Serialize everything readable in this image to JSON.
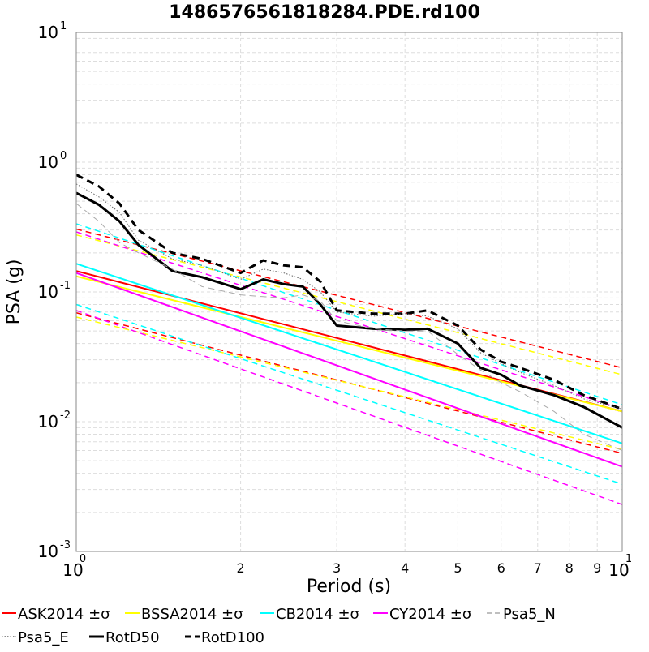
{
  "chart_data": {
    "type": "line",
    "title": "1486576561818284.PDE.rd100",
    "xlabel": "Period (s)",
    "ylabel": "PSA (g)",
    "xscale": "log",
    "yscale": "log",
    "xlim": [
      1,
      10
    ],
    "ylim": [
      0.001,
      10
    ],
    "grid": true,
    "legend_position": "bottom",
    "x_major_ticks": [
      {
        "value": 1,
        "base": "10",
        "exp": "0"
      },
      {
        "value": 10,
        "base": "10",
        "exp": "1"
      }
    ],
    "x_minor_ticks": [
      {
        "value": 2,
        "label": "2"
      },
      {
        "value": 3,
        "label": "3"
      },
      {
        "value": 4,
        "label": "4"
      },
      {
        "value": 5,
        "label": "5"
      },
      {
        "value": 6,
        "label": "6"
      },
      {
        "value": 7,
        "label": "7"
      },
      {
        "value": 8,
        "label": "8"
      },
      {
        "value": 9,
        "label": "9"
      }
    ],
    "y_major_ticks": [
      {
        "value": 10,
        "base": "10",
        "exp": "1"
      },
      {
        "value": 1,
        "base": "10",
        "exp": "0"
      },
      {
        "value": 0.1,
        "base": "10",
        "exp": "-1"
      },
      {
        "value": 0.01,
        "base": "10",
        "exp": "-2"
      },
      {
        "value": 0.001,
        "base": "10",
        "exp": "-3"
      }
    ],
    "legend": [
      {
        "label": "ASK2014 ±σ",
        "color": "#ff0000",
        "style": "solid"
      },
      {
        "label": "BSSA2014 ±σ",
        "color": "#ffff00",
        "style": "solid"
      },
      {
        "label": "CB2014 ±σ",
        "color": "#00ffff",
        "style": "solid"
      },
      {
        "label": "CY2014 ±σ",
        "color": "#ff00ff",
        "style": "solid"
      },
      {
        "label": "Psa5_N",
        "color": "#aaaaaa",
        "style": "dashed"
      },
      {
        "label": "Psa5_E",
        "color": "#666666",
        "style": "dotted"
      },
      {
        "label": "RotD50",
        "color": "#000000",
        "style": "thick"
      },
      {
        "label": "RotD100",
        "color": "#000000",
        "style": "thickdash"
      }
    ],
    "gmpe_periods": [
      1,
      10
    ],
    "gmpe_series": [
      {
        "name": "ASK2014 ±σ",
        "color": "#ff0000",
        "median": [
          0.145,
          0.012
        ],
        "plus": [
          0.305,
          0.026
        ],
        "minus": [
          0.069,
          0.0057
        ]
      },
      {
        "name": "BSSA2014 ±σ",
        "color": "#ffff00",
        "median": [
          0.132,
          0.012
        ],
        "plus": [
          0.275,
          0.023
        ],
        "minus": [
          0.064,
          0.0061
        ]
      },
      {
        "name": "CB2014 ±σ",
        "color": "#00ffff",
        "median": [
          0.165,
          0.0068
        ],
        "plus": [
          0.335,
          0.0135
        ],
        "minus": [
          0.08,
          0.0033
        ]
      },
      {
        "name": "CY2014 ±σ",
        "color": "#ff00ff",
        "median": [
          0.14,
          0.0045
        ],
        "plus": [
          0.29,
          0.0125
        ],
        "minus": [
          0.072,
          0.0023
        ]
      }
    ],
    "periods": [
      1.0,
      1.1,
      1.2,
      1.3,
      1.5,
      1.7,
      2.0,
      2.2,
      2.4,
      2.6,
      2.8,
      3.0,
      3.5,
      4.0,
      4.4,
      5.0,
      5.5,
      6.0,
      6.5,
      7.5,
      8.5,
      10.0
    ],
    "observed_series": [
      {
        "name": "RotD50",
        "color": "#000000",
        "style": "thick",
        "values": [
          0.58,
          0.47,
          0.35,
          0.23,
          0.145,
          0.13,
          0.105,
          0.125,
          0.115,
          0.11,
          0.08,
          0.055,
          0.052,
          0.051,
          0.052,
          0.04,
          0.026,
          0.023,
          0.019,
          0.016,
          0.013,
          0.009
        ]
      },
      {
        "name": "RotD100",
        "color": "#000000",
        "style": "thickdash",
        "values": [
          0.8,
          0.65,
          0.48,
          0.3,
          0.2,
          0.18,
          0.14,
          0.175,
          0.16,
          0.155,
          0.12,
          0.072,
          0.068,
          0.068,
          0.072,
          0.055,
          0.036,
          0.029,
          0.026,
          0.021,
          0.016,
          0.0125
        ]
      },
      {
        "name": "Psa5_N",
        "color": "#aaaaaa",
        "style": "dashed",
        "values": [
          0.48,
          0.35,
          0.24,
          0.2,
          0.15,
          0.11,
          0.095,
          0.092,
          0.09,
          0.095,
          0.085,
          0.06,
          0.052,
          0.05,
          0.05,
          0.033,
          0.025,
          0.02,
          0.017,
          0.012,
          0.008,
          0.006
        ]
      },
      {
        "name": "Psa5_E",
        "color": "#666666",
        "style": "dotted",
        "values": [
          0.68,
          0.54,
          0.41,
          0.25,
          0.18,
          0.16,
          0.125,
          0.15,
          0.14,
          0.125,
          0.1,
          0.07,
          0.065,
          0.068,
          0.065,
          0.052,
          0.034,
          0.028,
          0.024,
          0.019,
          0.015,
          0.0125
        ]
      }
    ]
  }
}
